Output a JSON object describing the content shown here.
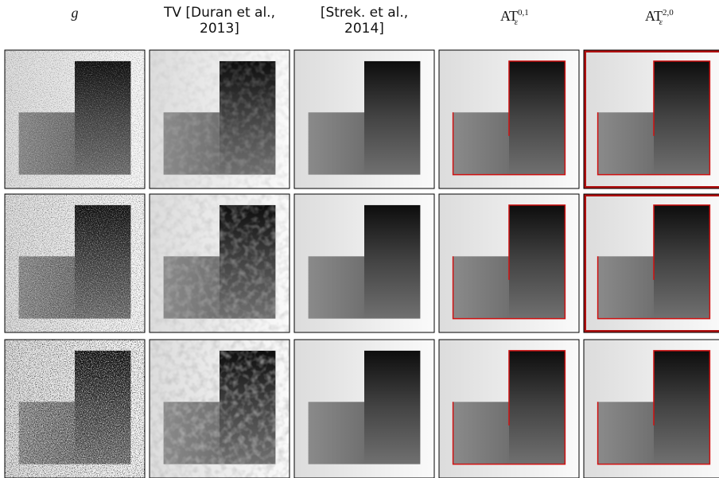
{
  "columns": [
    {
      "label": "g"
    },
    {
      "label": "TV [Duran et al., 2013]"
    },
    {
      "label": "[Strek. et al., 2014]"
    },
    {
      "base": "AT",
      "sup": "0,1",
      "sub": "ε"
    },
    {
      "base": "AT",
      "sup": "2,0",
      "sub": "ε"
    }
  ]
}
